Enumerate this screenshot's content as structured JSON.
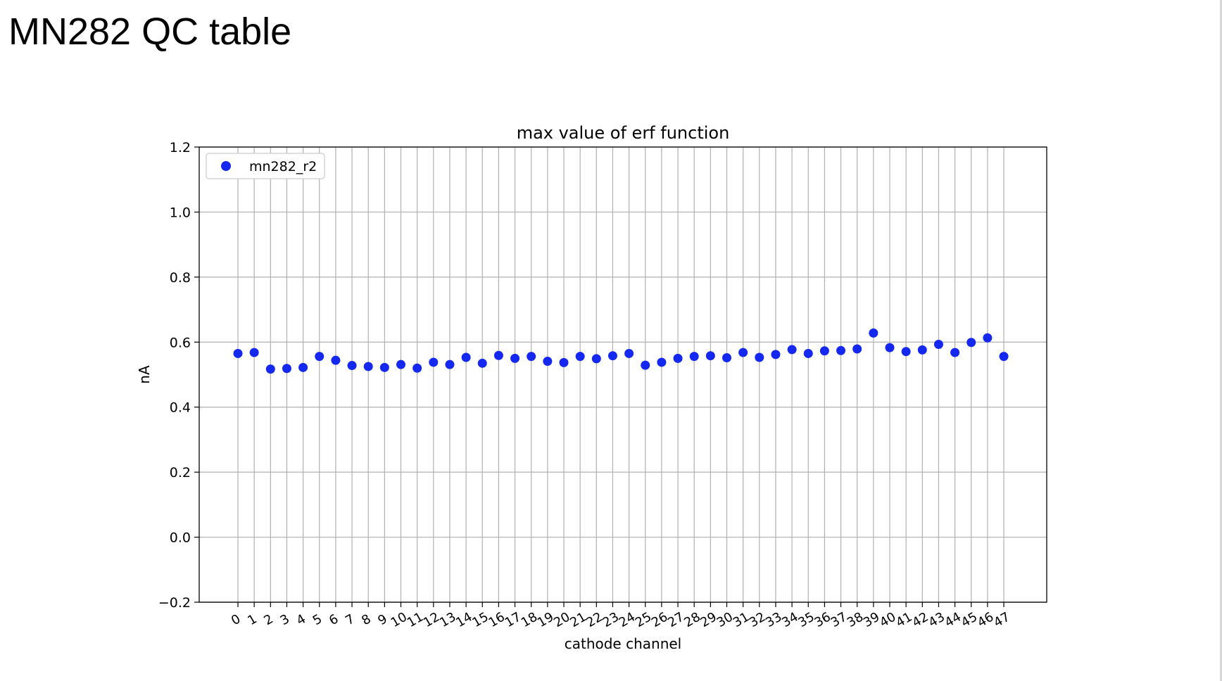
{
  "slide": {
    "title": "MN282 QC table"
  },
  "chart_data": {
    "type": "scatter",
    "title": "max value of erf function",
    "xlabel": "cathode channel",
    "ylabel": "nA",
    "ylim": [
      -0.2,
      1.2
    ],
    "yticks": [
      "−0.2",
      "0.0",
      "0.2",
      "0.4",
      "0.6",
      "0.8",
      "1.0",
      "1.2"
    ],
    "ytick_values": [
      -0.2,
      0.0,
      0.2,
      0.4,
      0.6,
      0.8,
      1.0,
      1.2
    ],
    "x": [
      0,
      1,
      2,
      3,
      4,
      5,
      6,
      7,
      8,
      9,
      10,
      11,
      12,
      13,
      14,
      15,
      16,
      17,
      18,
      19,
      20,
      21,
      22,
      23,
      24,
      25,
      26,
      27,
      28,
      29,
      30,
      31,
      32,
      33,
      34,
      35,
      36,
      37,
      38,
      39,
      40,
      41,
      42,
      43,
      44,
      45,
      46,
      47
    ],
    "xticks": [
      "0",
      "1",
      "2",
      "3",
      "4",
      "5",
      "6",
      "7",
      "8",
      "9",
      "10",
      "11",
      "12",
      "13",
      "14",
      "15",
      "16",
      "17",
      "18",
      "19",
      "20",
      "21",
      "22",
      "23",
      "24",
      "25",
      "26",
      "27",
      "28",
      "29",
      "30",
      "31",
      "32",
      "33",
      "34",
      "35",
      "36",
      "37",
      "38",
      "39",
      "40",
      "41",
      "42",
      "43",
      "44",
      "45",
      "46",
      "47"
    ],
    "grid": true,
    "legend_position": "top-left",
    "series": [
      {
        "name": "mn282_r2",
        "color": "#1428f0",
        "values": [
          0.565,
          0.568,
          0.517,
          0.519,
          0.522,
          0.556,
          0.544,
          0.528,
          0.525,
          0.522,
          0.531,
          0.52,
          0.538,
          0.531,
          0.553,
          0.535,
          0.559,
          0.55,
          0.556,
          0.541,
          0.537,
          0.556,
          0.549,
          0.558,
          0.565,
          0.529,
          0.538,
          0.55,
          0.556,
          0.558,
          0.552,
          0.568,
          0.553,
          0.562,
          0.577,
          0.565,
          0.573,
          0.574,
          0.579,
          0.628,
          0.583,
          0.571,
          0.576,
          0.593,
          0.568,
          0.599,
          0.613,
          0.556
        ]
      }
    ]
  }
}
